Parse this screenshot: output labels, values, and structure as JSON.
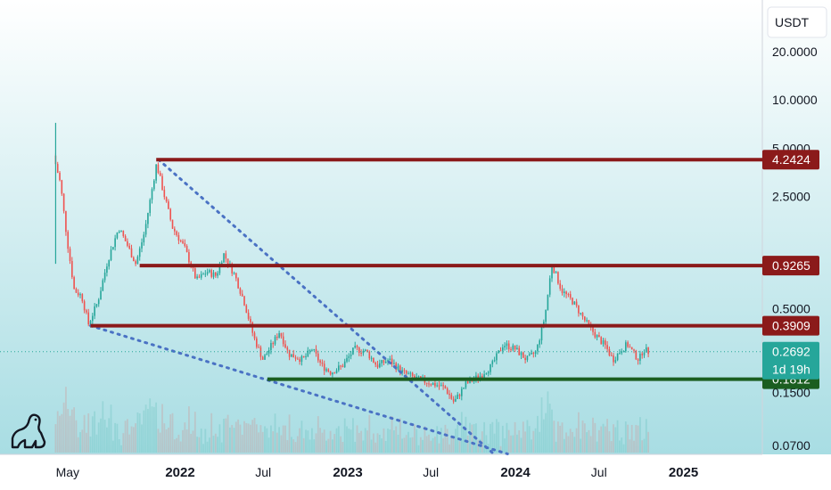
{
  "currency": "USDT",
  "colors": {
    "bg_top": "#ffffff",
    "bg_bottom": "#a8dde3",
    "up": "#26a69a",
    "down": "#ef5350",
    "resistance": "#8b1a1a",
    "support": "#1b5e20",
    "trend": "#4a72c4",
    "price_tag": "#26a69a"
  },
  "chart_data": {
    "type": "candlestick",
    "y_scale": "log",
    "y_ticks": [
      "20.0000",
      "10.0000",
      "5.0000",
      "2.5000",
      "0.5000",
      "0.1500",
      "0.0700"
    ],
    "x_ticks": [
      {
        "label": "May",
        "bold": false
      },
      {
        "label": "2022",
        "bold": true
      },
      {
        "label": "Jul",
        "bold": false
      },
      {
        "label": "2023",
        "bold": true
      },
      {
        "label": "Jul",
        "bold": false
      },
      {
        "label": "2024",
        "bold": true
      },
      {
        "label": "Jul",
        "bold": false
      },
      {
        "label": "2025",
        "bold": true
      }
    ],
    "horizontal_levels": [
      {
        "value": 4.2424,
        "label": "4.2424",
        "kind": "resistance"
      },
      {
        "value": 0.9265,
        "label": "0.9265",
        "kind": "resistance"
      },
      {
        "value": 0.3909,
        "label": "0.3909",
        "kind": "resistance"
      },
      {
        "value": 0.1812,
        "label": "0.1812",
        "kind": "support"
      }
    ],
    "last_price": {
      "value": 0.2692,
      "label": "0.2692",
      "countdown": "1d 19h"
    },
    "trendlines": [
      {
        "name": "upper",
        "from": {
          "date": "2021-11-15",
          "price": 4.2424
        },
        "to": {
          "date": "2023-11-15",
          "price": 0.062
        }
      },
      {
        "name": "lower",
        "from": {
          "date": "2021-06-20",
          "price": 0.3909
        },
        "to": {
          "date": "2023-12-15",
          "price": 0.062
        }
      }
    ],
    "price_path": [
      [
        "2021-04-05",
        4.5
      ],
      [
        "2021-04-20",
        3.0
      ],
      [
        "2021-05-05",
        1.3
      ],
      [
        "2021-05-20",
        0.65
      ],
      [
        "2021-06-05",
        0.6
      ],
      [
        "2021-06-20",
        0.4
      ],
      [
        "2021-07-10",
        0.55
      ],
      [
        "2021-08-01",
        1.0
      ],
      [
        "2021-08-25",
        1.6
      ],
      [
        "2021-09-15",
        1.2
      ],
      [
        "2021-10-01",
        0.95
      ],
      [
        "2021-10-20",
        1.5
      ],
      [
        "2021-11-15",
        4.0
      ],
      [
        "2021-12-01",
        2.6
      ],
      [
        "2021-12-20",
        1.6
      ],
      [
        "2022-01-15",
        1.2
      ],
      [
        "2022-02-10",
        0.75
      ],
      [
        "2022-03-05",
        0.85
      ],
      [
        "2022-03-25",
        0.8
      ],
      [
        "2022-04-10",
        1.1
      ],
      [
        "2022-05-05",
        0.8
      ],
      [
        "2022-05-25",
        0.55
      ],
      [
        "2022-06-15",
        0.33
      ],
      [
        "2022-07-05",
        0.24
      ],
      [
        "2022-07-25",
        0.3
      ],
      [
        "2022-08-10",
        0.36
      ],
      [
        "2022-08-30",
        0.26
      ],
      [
        "2022-09-30",
        0.24
      ],
      [
        "2022-10-20",
        0.28
      ],
      [
        "2022-11-10",
        0.22
      ],
      [
        "2022-11-30",
        0.2
      ],
      [
        "2022-12-25",
        0.22
      ],
      [
        "2023-01-20",
        0.28
      ],
      [
        "2023-02-15",
        0.27
      ],
      [
        "2023-03-10",
        0.22
      ],
      [
        "2023-04-05",
        0.24
      ],
      [
        "2023-05-05",
        0.2
      ],
      [
        "2023-06-10",
        0.18
      ],
      [
        "2023-07-10",
        0.17
      ],
      [
        "2023-08-05",
        0.16
      ],
      [
        "2023-08-25",
        0.13
      ],
      [
        "2023-09-20",
        0.17
      ],
      [
        "2023-10-20",
        0.19
      ],
      [
        "2023-11-15",
        0.22
      ],
      [
        "2023-12-10",
        0.3
      ],
      [
        "2024-01-05",
        0.28
      ],
      [
        "2024-01-30",
        0.24
      ],
      [
        "2024-02-20",
        0.27
      ],
      [
        "2024-03-10",
        0.45
      ],
      [
        "2024-03-25",
        0.95
      ],
      [
        "2024-04-15",
        0.65
      ],
      [
        "2024-05-10",
        0.55
      ],
      [
        "2024-06-05",
        0.42
      ],
      [
        "2024-06-25",
        0.35
      ],
      [
        "2024-07-20",
        0.29
      ],
      [
        "2024-08-05",
        0.24
      ],
      [
        "2024-08-20",
        0.27
      ],
      [
        "2024-09-05",
        0.3
      ],
      [
        "2024-09-20",
        0.26
      ],
      [
        "2024-10-01",
        0.24
      ],
      [
        "2024-10-10",
        0.28
      ],
      [
        "2024-10-20",
        0.2692
      ]
    ]
  }
}
